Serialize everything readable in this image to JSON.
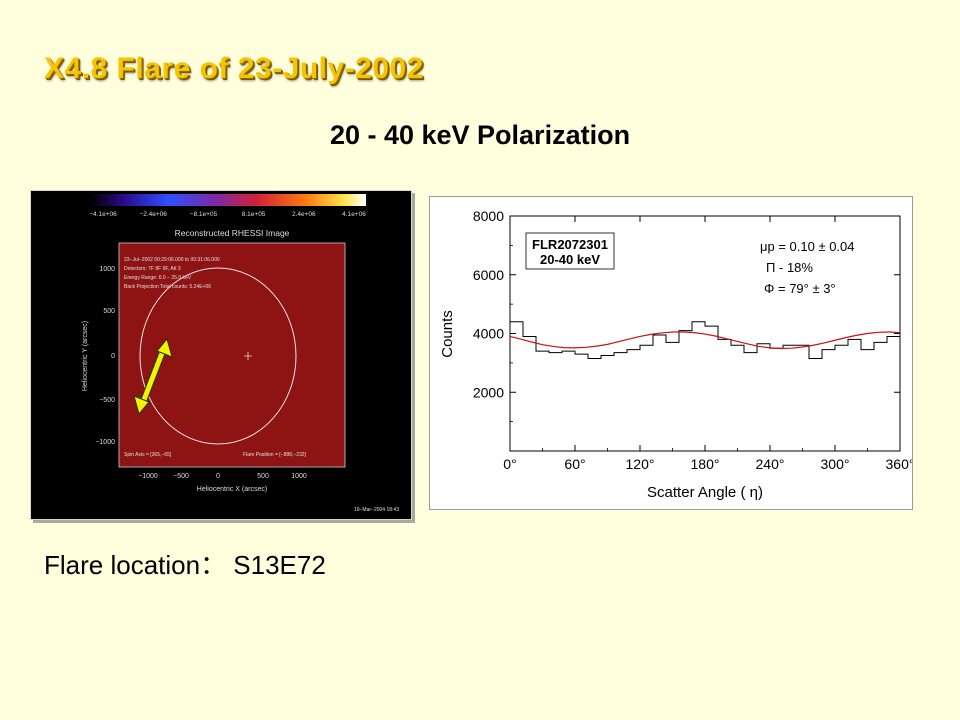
{
  "slide": {
    "title": "X4.8 Flare of 23-July-2002",
    "subtitle": "20 - 40 keV Polarization",
    "location_label": "Flare location： S13E72"
  },
  "image_panel": {
    "colorbar_ticks": [
      "−4.1e+06",
      "−2.4e+06",
      "−8.1e+05",
      "8.1e+05",
      "2.4e+06",
      "4.1e+06"
    ],
    "plot_title": "Reconstructed RHESSI Image",
    "info_lines": [
      "23−Jul−2002 00:29:06.000 to 00:31:06.000",
      "Detectors: 7F 8F 9F, Att 3",
      "Energy Range: 6.0 − 25.0 keV",
      "Back Projection    Total counts: 5.24E+06"
    ],
    "y_ticks": [
      "1000",
      "500",
      "0",
      "−500",
      "−1000"
    ],
    "x_ticks": [
      "−1000",
      "−500",
      "0",
      "500",
      "1000"
    ],
    "ylabel": "Heliocentric Y (arcsec)",
    "xlabel": "Heliocentric X (arcsec)",
    "spin_axis": "Spin Axis = [365,−65]",
    "flare_position": "Flare Position = [−888,−232]",
    "footer": "19−Mar−2004 18:43"
  },
  "chart_data": {
    "type": "line",
    "title": "",
    "xlabel": "Scatter Angle ( η)",
    "ylabel": "Counts",
    "xlim": [
      0,
      360
    ],
    "ylim": [
      0,
      8000
    ],
    "x_ticks": [
      0,
      60,
      120,
      180,
      240,
      300,
      360
    ],
    "x_tick_labels": [
      "0°",
      "60°",
      "120°",
      "180°",
      "240°",
      "300°",
      "360°"
    ],
    "y_ticks": [
      2000,
      4000,
      6000,
      8000
    ],
    "y_tick_labels": [
      "2000",
      "4000",
      "6000",
      "8000"
    ],
    "legend_box": "FLR2072301\n20-40 keV",
    "params": [
      "μp = 0.10 ± 0.04",
      "Π - 18%",
      "Φ = 79° ± 3°"
    ],
    "series": [
      {
        "style": "step",
        "bin_width": 12,
        "x": [
          0,
          12,
          24,
          36,
          48,
          60,
          72,
          84,
          96,
          108,
          120,
          132,
          144,
          156,
          168,
          180,
          192,
          204,
          216,
          228,
          240,
          252,
          264,
          276,
          288,
          300,
          312,
          324,
          336,
          348
        ],
        "values": [
          4400,
          3900,
          3400,
          3350,
          3400,
          3300,
          3150,
          3250,
          3350,
          3450,
          3600,
          3950,
          3700,
          4100,
          4400,
          4250,
          3800,
          3600,
          3350,
          3650,
          3500,
          3600,
          3600,
          3150,
          3450,
          3600,
          3800,
          3450,
          3700,
          3900
        ]
      },
      {
        "style": "line",
        "model": "fit",
        "x": [
          0,
          10,
          20,
          30,
          40,
          50,
          60,
          70,
          80,
          90,
          100,
          110,
          120,
          130,
          140,
          150,
          160,
          170,
          180,
          190,
          200,
          210,
          220,
          230,
          240,
          250,
          260,
          270,
          280,
          290,
          300,
          310,
          320,
          330,
          340,
          350,
          360
        ],
        "values": [
          3900,
          3810,
          3710,
          3620,
          3560,
          3520,
          3510,
          3530,
          3570,
          3630,
          3720,
          3810,
          3900,
          3970,
          4020,
          4050,
          4050,
          4030,
          3980,
          3910,
          3820,
          3730,
          3640,
          3560,
          3510,
          3490,
          3500,
          3540,
          3600,
          3680,
          3770,
          3860,
          3940,
          4000,
          4040,
          4050,
          4030
        ]
      }
    ]
  },
  "colors": {
    "title": "#f8c400",
    "background": "#fffedd",
    "fit_line": "#cc1111",
    "arrow": "#f4f000"
  }
}
